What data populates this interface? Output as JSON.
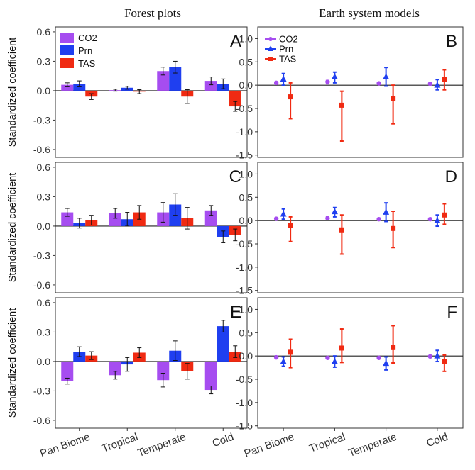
{
  "titles": {
    "left": "Forest plots",
    "right": "Earth system models"
  },
  "colors": {
    "CO2": "#a64df0",
    "Prn": "#1f3ff0",
    "TAS": "#f02a12"
  },
  "chart_data": [
    {
      "id": "A",
      "type": "bar",
      "letter": "A",
      "ylabel": "Standardized coefficient",
      "ylim": [
        -0.68,
        0.65
      ],
      "yticks": [
        -0.6,
        -0.3,
        0.0,
        0.3,
        0.6
      ],
      "categories": [
        "Pan Biome",
        "Tropical",
        "Temperate",
        "Cold"
      ],
      "legend": "top-left",
      "series": [
        {
          "name": "CO2",
          "values": [
            0.06,
            0.005,
            0.2,
            0.1
          ],
          "err": [
            0.02,
            0.01,
            0.04,
            0.04
          ]
        },
        {
          "name": "Prn",
          "values": [
            0.07,
            0.03,
            0.24,
            0.07
          ],
          "err": [
            0.03,
            0.015,
            0.06,
            0.05
          ]
        },
        {
          "name": "TAS",
          "values": [
            -0.06,
            -0.01,
            -0.06,
            -0.16
          ],
          "err": [
            0.03,
            0.02,
            0.07,
            0.05
          ]
        }
      ]
    },
    {
      "id": "B",
      "type": "scatter",
      "letter": "B",
      "ylim": [
        -1.55,
        1.25
      ],
      "yticks": [
        -1.5,
        -1.0,
        -0.5,
        0.0,
        0.5,
        1.0
      ],
      "categories": [
        "Pan Biome",
        "Tropical",
        "Temperate",
        "Cold"
      ],
      "legend": "top-left",
      "series": [
        {
          "name": "CO2",
          "values": [
            0.05,
            0.07,
            0.04,
            0.03
          ],
          "lo": [
            0.03,
            0.03,
            0.02,
            0.01
          ],
          "hi": [
            0.07,
            0.1,
            0.06,
            0.05
          ]
        },
        {
          "name": "Prn",
          "values": [
            0.13,
            0.18,
            0.18,
            0.0
          ],
          "lo": [
            0.0,
            0.05,
            -0.02,
            -0.1
          ],
          "hi": [
            0.25,
            0.28,
            0.38,
            0.12
          ]
        },
        {
          "name": "TAS",
          "values": [
            -0.25,
            -0.43,
            -0.29,
            0.12
          ],
          "lo": [
            -0.72,
            -1.2,
            -0.83,
            -0.1
          ],
          "hi": [
            0.05,
            -0.13,
            0.0,
            0.33
          ]
        }
      ]
    },
    {
      "id": "C",
      "type": "bar",
      "letter": "C",
      "ylabel": "Standardized coefficient",
      "ylim": [
        -0.68,
        0.65
      ],
      "yticks": [
        -0.6,
        -0.3,
        0.0,
        0.3,
        0.6
      ],
      "categories": [
        "Pan Biome",
        "Tropical",
        "Temperate",
        "Cold"
      ],
      "series": [
        {
          "name": "CO2",
          "values": [
            0.14,
            0.13,
            0.14,
            0.16
          ],
          "err": [
            0.04,
            0.05,
            0.1,
            0.05
          ]
        },
        {
          "name": "Prn",
          "values": [
            0.03,
            0.07,
            0.22,
            -0.11
          ],
          "err": [
            0.05,
            0.07,
            0.11,
            0.06
          ]
        },
        {
          "name": "TAS",
          "values": [
            0.06,
            0.14,
            0.08,
            -0.09
          ],
          "err": [
            0.05,
            0.07,
            0.11,
            0.06
          ]
        }
      ]
    },
    {
      "id": "D",
      "type": "scatter",
      "letter": "D",
      "ylim": [
        -1.55,
        1.25
      ],
      "yticks": [
        -1.5,
        -1.0,
        -0.5,
        0.0,
        0.5,
        1.0
      ],
      "categories": [
        "Pan Biome",
        "Tropical",
        "Temperate",
        "Cold"
      ],
      "series": [
        {
          "name": "CO2",
          "values": [
            0.04,
            0.05,
            0.03,
            0.03
          ],
          "lo": [
            0.02,
            0.02,
            0.01,
            0.01
          ],
          "hi": [
            0.06,
            0.08,
            0.05,
            0.05
          ]
        },
        {
          "name": "Prn",
          "values": [
            0.14,
            0.19,
            0.18,
            0.0
          ],
          "lo": [
            0.03,
            0.08,
            -0.02,
            -0.12
          ],
          "hi": [
            0.25,
            0.28,
            0.38,
            0.12
          ]
        },
        {
          "name": "TAS",
          "values": [
            -0.1,
            -0.2,
            -0.17,
            0.12
          ],
          "lo": [
            -0.45,
            -0.72,
            -0.58,
            -0.08
          ],
          "hi": [
            0.08,
            0.12,
            0.2,
            0.36
          ]
        }
      ]
    },
    {
      "id": "E",
      "type": "bar",
      "letter": "E",
      "ylabel": "Standardized coefficient",
      "ylim": [
        -0.68,
        0.65
      ],
      "yticks": [
        -0.6,
        -0.3,
        0.0,
        0.3,
        0.6
      ],
      "categories": [
        "Pan Biome",
        "Tropical",
        "Temperate",
        "Cold"
      ],
      "series": [
        {
          "name": "CO2",
          "values": [
            -0.2,
            -0.14,
            -0.19,
            -0.29
          ],
          "err": [
            0.03,
            0.04,
            0.07,
            0.04
          ]
        },
        {
          "name": "Prn",
          "values": [
            0.1,
            -0.03,
            0.11,
            0.36
          ],
          "err": [
            0.05,
            0.07,
            0.1,
            0.06
          ]
        },
        {
          "name": "TAS",
          "values": [
            0.06,
            0.09,
            -0.1,
            0.1
          ],
          "err": [
            0.04,
            0.05,
            0.08,
            0.06
          ]
        }
      ]
    },
    {
      "id": "F",
      "type": "scatter",
      "letter": "F",
      "ylim": [
        -1.55,
        1.25
      ],
      "yticks": [
        -1.5,
        -1.0,
        -0.5,
        0.0,
        0.5,
        1.0
      ],
      "categories": [
        "Pan Biome",
        "Tropical",
        "Temperate",
        "Cold"
      ],
      "series": [
        {
          "name": "CO2",
          "values": [
            -0.03,
            -0.04,
            -0.04,
            -0.01
          ],
          "lo": [
            -0.05,
            -0.06,
            -0.06,
            -0.03
          ],
          "hi": [
            -0.01,
            -0.02,
            -0.02,
            0.01
          ]
        },
        {
          "name": "Prn",
          "values": [
            -0.12,
            -0.12,
            -0.16,
            0.0
          ],
          "lo": [
            -0.22,
            -0.24,
            -0.3,
            -0.12
          ],
          "hi": [
            -0.02,
            0.0,
            -0.02,
            0.12
          ]
        },
        {
          "name": "TAS",
          "values": [
            0.08,
            0.17,
            0.18,
            -0.12
          ],
          "lo": [
            -0.25,
            -0.14,
            -0.15,
            -0.33
          ],
          "hi": [
            0.36,
            0.58,
            0.65,
            0.02
          ]
        }
      ]
    }
  ],
  "xaxis": {
    "categories": [
      "Pan Biome",
      "Tropical",
      "Temperate",
      "Cold"
    ]
  }
}
